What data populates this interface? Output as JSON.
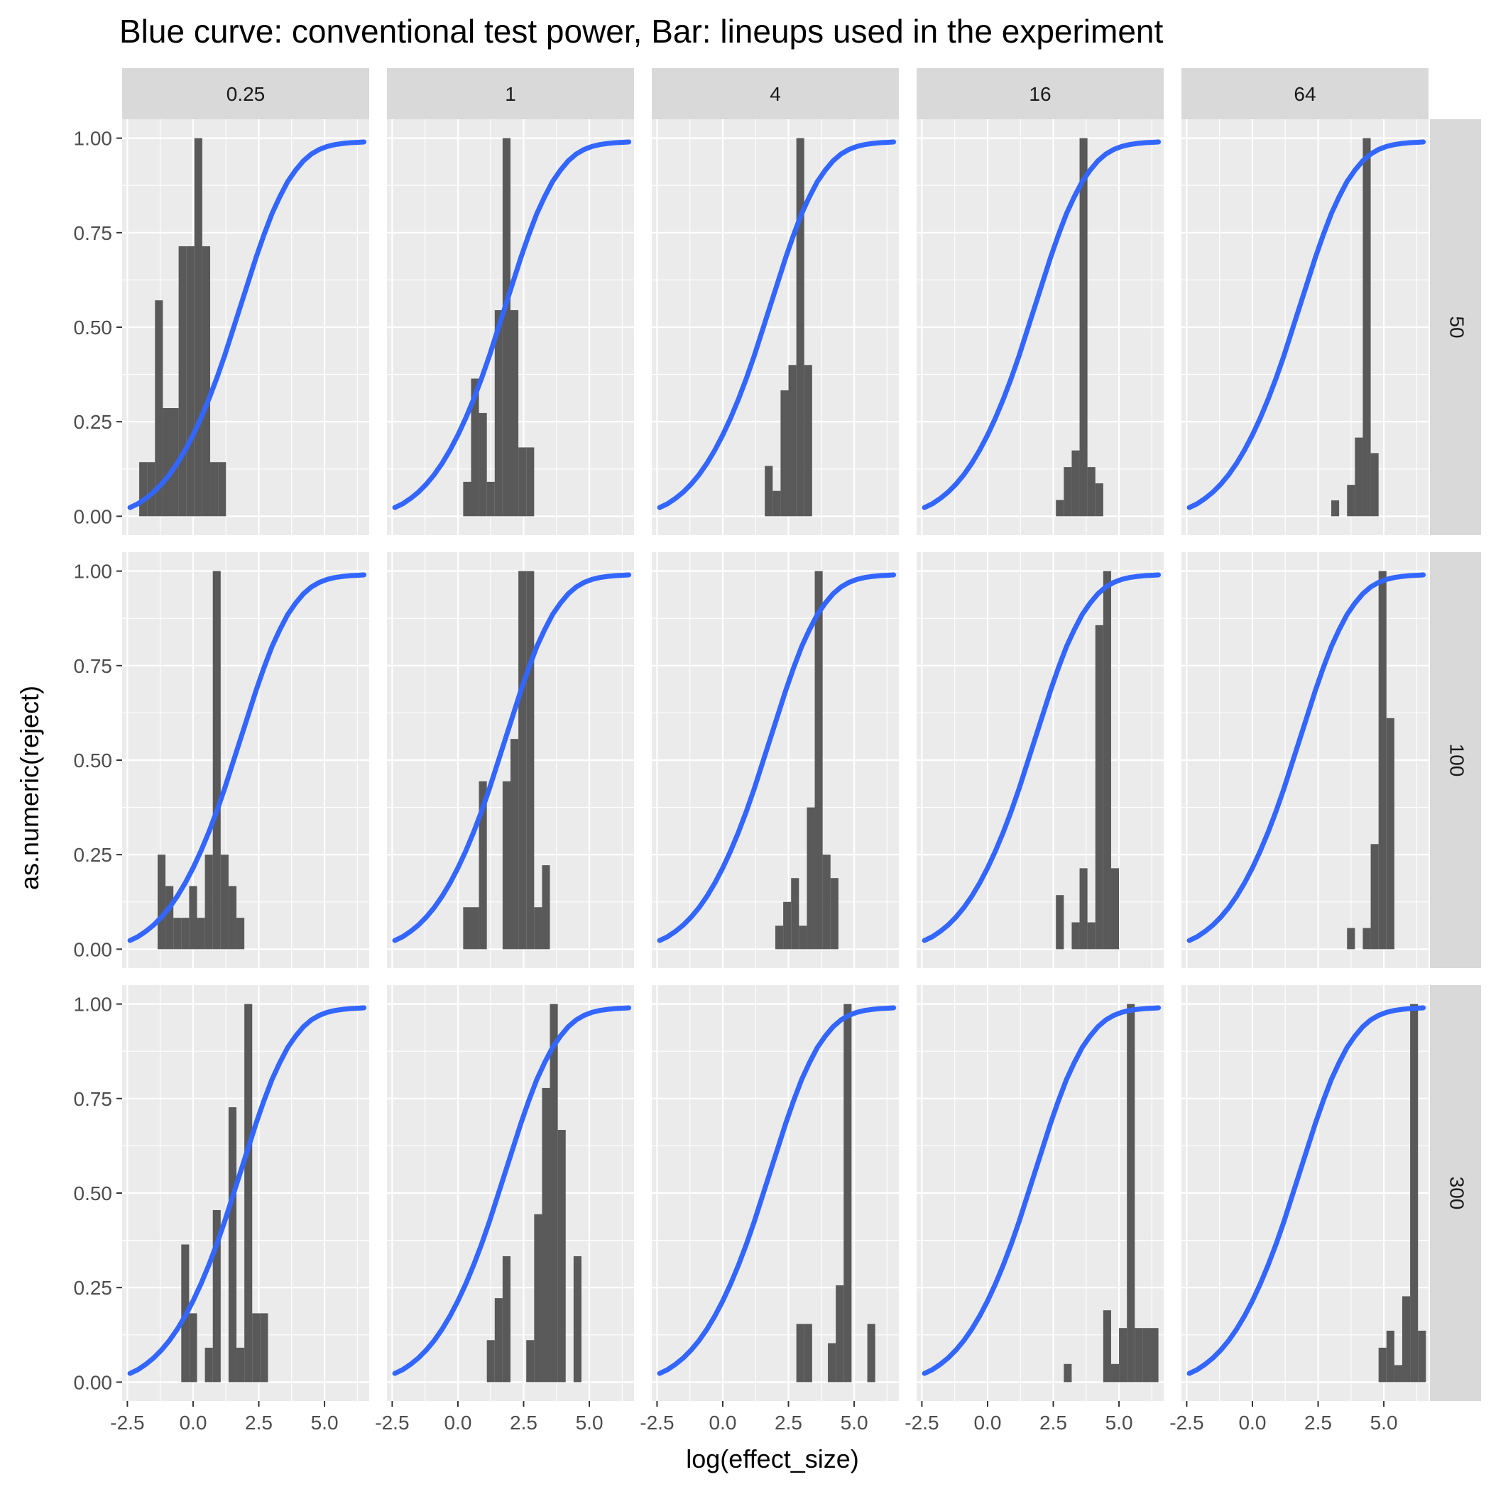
{
  "chart_data": {
    "type": "bar",
    "title": "Blue curve: conventional test power, Bar: lineups used in the experiment",
    "xlabel": "log(effect_size)",
    "ylabel": "as.numeric(reject)",
    "xlim": [
      -2.7,
      6.7
    ],
    "ylim": [
      -0.05,
      1.05
    ],
    "x_ticks": [
      -2.5,
      0,
      2.5,
      5
    ],
    "x_tick_labels": [
      "-2.5",
      "0.0",
      "2.5",
      "5.0"
    ],
    "y_ticks": [
      0,
      0.25,
      0.5,
      0.75,
      1
    ],
    "y_tick_labels": [
      "0.00",
      "0.25",
      "0.50",
      "0.75",
      "1.00"
    ],
    "grid": true,
    "col_facets": [
      "0.25",
      "1",
      "4",
      "16",
      "64"
    ],
    "row_facets": [
      "50",
      "100",
      "300"
    ],
    "bin_width": 0.3,
    "curve_color": "#3366ff",
    "bar_color": "#595959",
    "power_curve": {
      "x": [
        -2.4,
        -2.1,
        -1.8,
        -1.5,
        -1.2,
        -0.9,
        -0.6,
        -0.3,
        0,
        0.3,
        0.6,
        0.9,
        1.2,
        1.5,
        1.8,
        2.1,
        2.4,
        2.7,
        3,
        3.3,
        3.6,
        3.9,
        4.2,
        4.5,
        4.8,
        5.1,
        5.4,
        5.7,
        6,
        6.3,
        6.5
      ],
      "y": [
        0.023,
        0.033,
        0.047,
        0.064,
        0.085,
        0.11,
        0.14,
        0.175,
        0.215,
        0.26,
        0.31,
        0.365,
        0.425,
        0.49,
        0.555,
        0.62,
        0.685,
        0.745,
        0.8,
        0.845,
        0.885,
        0.915,
        0.94,
        0.958,
        0.97,
        0.978,
        0.983,
        0.986,
        0.988,
        0.989,
        0.99
      ]
    },
    "panels": [
      {
        "row": "50",
        "col": "0.25",
        "bars": [
          [
            -1.9,
            0.143
          ],
          [
            -1.6,
            0.143
          ],
          [
            -1.3,
            0.571
          ],
          [
            -1.0,
            0.286
          ],
          [
            -0.7,
            0.286
          ],
          [
            -0.4,
            0.714
          ],
          [
            -0.1,
            0.714
          ],
          [
            0.2,
            1.0
          ],
          [
            0.5,
            0.714
          ],
          [
            0.8,
            0.143
          ],
          [
            1.1,
            0.143
          ]
        ]
      },
      {
        "row": "50",
        "col": "1",
        "bars": [
          [
            0.35,
            0.091
          ],
          [
            0.65,
            0.364
          ],
          [
            0.95,
            0.273
          ],
          [
            1.25,
            0.091
          ],
          [
            1.55,
            0.545
          ],
          [
            1.85,
            1.0
          ],
          [
            2.15,
            0.545
          ],
          [
            2.45,
            0.182
          ],
          [
            2.75,
            0.182
          ]
        ]
      },
      {
        "row": "50",
        "col": "4",
        "bars": [
          [
            1.75,
            0.133
          ],
          [
            2.05,
            0.067
          ],
          [
            2.35,
            0.333
          ],
          [
            2.65,
            0.4
          ],
          [
            2.95,
            1.0
          ],
          [
            3.25,
            0.4
          ]
        ]
      },
      {
        "row": "50",
        "col": "16",
        "bars": [
          [
            2.75,
            0.043
          ],
          [
            3.05,
            0.13
          ],
          [
            3.35,
            0.174
          ],
          [
            3.65,
            1.0
          ],
          [
            3.95,
            0.13
          ],
          [
            4.25,
            0.087
          ]
        ]
      },
      {
        "row": "50",
        "col": "64",
        "bars": [
          [
            3.15,
            0.042
          ],
          [
            3.45,
            0.0
          ],
          [
            3.75,
            0.083
          ],
          [
            4.05,
            0.208
          ],
          [
            4.35,
            1.0
          ],
          [
            4.65,
            0.167
          ]
        ]
      },
      {
        "row": "100",
        "col": "0.25",
        "bars": [
          [
            -1.2,
            0.25
          ],
          [
            -0.9,
            0.167
          ],
          [
            -0.6,
            0.083
          ],
          [
            -0.3,
            0.083
          ],
          [
            0,
            0.167
          ],
          [
            0.3,
            0.083
          ],
          [
            0.6,
            0.25
          ],
          [
            0.9,
            1.0
          ],
          [
            1.2,
            0.25
          ],
          [
            1.5,
            0.167
          ],
          [
            1.8,
            0.083
          ]
        ]
      },
      {
        "row": "100",
        "col": "1",
        "bars": [
          [
            0.35,
            0.111
          ],
          [
            0.65,
            0.111
          ],
          [
            0.95,
            0.444
          ],
          [
            1.25,
            0.0
          ],
          [
            1.55,
            0.0
          ],
          [
            1.85,
            0.444
          ],
          [
            2.15,
            0.556
          ],
          [
            2.45,
            1.0
          ],
          [
            2.75,
            1.0
          ],
          [
            3.05,
            0.111
          ],
          [
            3.35,
            0.222
          ]
        ]
      },
      {
        "row": "100",
        "col": "4",
        "bars": [
          [
            2.15,
            0.062
          ],
          [
            2.45,
            0.125
          ],
          [
            2.75,
            0.188
          ],
          [
            3.05,
            0.062
          ],
          [
            3.35,
            0.375
          ],
          [
            3.65,
            1.0
          ],
          [
            3.95,
            0.25
          ],
          [
            4.25,
            0.188
          ]
        ]
      },
      {
        "row": "100",
        "col": "16",
        "bars": [
          [
            2.75,
            0.143
          ],
          [
            3.05,
            0.0
          ],
          [
            3.35,
            0.071
          ],
          [
            3.65,
            0.214
          ],
          [
            3.95,
            0.071
          ],
          [
            4.25,
            0.857
          ],
          [
            4.55,
            1.0
          ],
          [
            4.85,
            0.214
          ]
        ]
      },
      {
        "row": "100",
        "col": "64",
        "bars": [
          [
            3.75,
            0.056
          ],
          [
            4.05,
            0.0
          ],
          [
            4.35,
            0.056
          ],
          [
            4.65,
            0.278
          ],
          [
            4.95,
            1.0
          ],
          [
            5.25,
            0.611
          ]
        ]
      },
      {
        "row": "300",
        "col": "0.25",
        "bars": [
          [
            -0.3,
            0.364
          ],
          [
            0,
            0.182
          ],
          [
            0.3,
            0.0
          ],
          [
            0.6,
            0.091
          ],
          [
            0.9,
            0.455
          ],
          [
            1.2,
            0.0
          ],
          [
            1.5,
            0.727
          ],
          [
            1.8,
            0.091
          ],
          [
            2.1,
            1.0
          ],
          [
            2.4,
            0.182
          ],
          [
            2.7,
            0.182
          ]
        ]
      },
      {
        "row": "300",
        "col": "1",
        "bars": [
          [
            1.25,
            0.111
          ],
          [
            1.55,
            0.222
          ],
          [
            1.85,
            0.333
          ],
          [
            2.15,
            0.0
          ],
          [
            2.45,
            0.0
          ],
          [
            2.75,
            0.111
          ],
          [
            3.05,
            0.444
          ],
          [
            3.35,
            0.778
          ],
          [
            3.65,
            1.0
          ],
          [
            3.95,
            0.667
          ],
          [
            4.25,
            0.0
          ],
          [
            4.55,
            0.333
          ]
        ]
      },
      {
        "row": "300",
        "col": "4",
        "bars": [
          [
            2.95,
            0.154
          ],
          [
            3.25,
            0.154
          ],
          [
            3.55,
            0.0
          ],
          [
            3.85,
            0.0
          ],
          [
            4.15,
            0.103
          ],
          [
            4.45,
            0.256
          ],
          [
            4.75,
            1.0
          ],
          [
            5.05,
            0.0
          ],
          [
            5.35,
            0.0
          ],
          [
            5.65,
            0.154
          ]
        ]
      },
      {
        "row": "300",
        "col": "16",
        "bars": [
          [
            3.05,
            0.048
          ],
          [
            3.35,
            0.0
          ],
          [
            3.65,
            0.0
          ],
          [
            3.95,
            0.0
          ],
          [
            4.25,
            0.0
          ],
          [
            4.55,
            0.19
          ],
          [
            4.85,
            0.048
          ],
          [
            5.15,
            0.143
          ],
          [
            5.45,
            1.0
          ],
          [
            5.75,
            0.143
          ],
          [
            6.05,
            0.143
          ],
          [
            6.35,
            0.143
          ]
        ]
      },
      {
        "row": "300",
        "col": "64",
        "bars": [
          [
            4.95,
            0.091
          ],
          [
            5.25,
            0.136
          ],
          [
            5.55,
            0.045
          ],
          [
            5.85,
            0.227
          ],
          [
            6.15,
            1.0
          ],
          [
            6.45,
            0.136
          ]
        ]
      }
    ]
  }
}
